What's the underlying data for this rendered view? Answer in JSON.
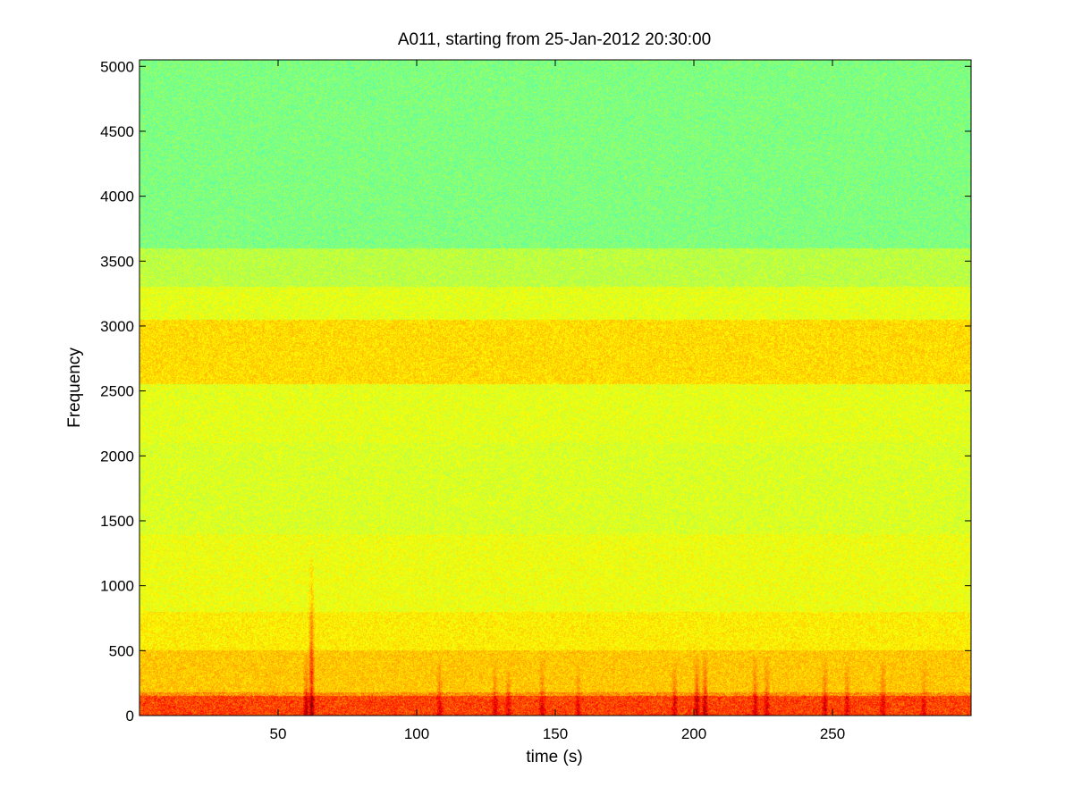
{
  "chart_data": {
    "type": "heatmap",
    "title": "A011, starting from 25-Jan-2012 20:30:00",
    "xlabel": "time (s)",
    "ylabel": "Frequency",
    "xlim": [
      0,
      300
    ],
    "ylim": [
      0,
      5050
    ],
    "x_ticks": [
      50,
      100,
      150,
      200,
      250
    ],
    "y_ticks": [
      0,
      500,
      1000,
      1500,
      2000,
      2500,
      3000,
      3500,
      4000,
      4500,
      5000
    ],
    "grid": false,
    "colormap": "jet",
    "color_scale_hint": "relative intensity 0-1 (no colorbar shown)",
    "bands": [
      {
        "freq_from": 3600,
        "freq_to": 5050,
        "intensity": 0.5
      },
      {
        "freq_from": 3300,
        "freq_to": 3600,
        "intensity": 0.56
      },
      {
        "freq_from": 3050,
        "freq_to": 3300,
        "intensity": 0.6
      },
      {
        "freq_from": 2550,
        "freq_to": 3050,
        "intensity": 0.66
      },
      {
        "freq_from": 2100,
        "freq_to": 2550,
        "intensity": 0.6
      },
      {
        "freq_from": 1400,
        "freq_to": 2100,
        "intensity": 0.59
      },
      {
        "freq_from": 800,
        "freq_to": 1400,
        "intensity": 0.61
      },
      {
        "freq_from": 500,
        "freq_to": 800,
        "intensity": 0.64
      },
      {
        "freq_from": 150,
        "freq_to": 500,
        "intensity": 0.68
      },
      {
        "freq_from": 0,
        "freq_to": 150,
        "intensity": 0.76
      }
    ],
    "transients": [
      {
        "time": 62,
        "freq_top": 1200,
        "intensity": 0.9
      },
      {
        "time": 60,
        "freq_top": 480,
        "intensity": 0.85
      },
      {
        "time": 108,
        "freq_top": 420,
        "intensity": 0.8
      },
      {
        "time": 128,
        "freq_top": 430,
        "intensity": 0.8
      },
      {
        "time": 133,
        "freq_top": 400,
        "intensity": 0.8
      },
      {
        "time": 145,
        "freq_top": 450,
        "intensity": 0.8
      },
      {
        "time": 158,
        "freq_top": 380,
        "intensity": 0.78
      },
      {
        "time": 193,
        "freq_top": 420,
        "intensity": 0.82
      },
      {
        "time": 201,
        "freq_top": 470,
        "intensity": 0.85
      },
      {
        "time": 204,
        "freq_top": 500,
        "intensity": 0.86
      },
      {
        "time": 222,
        "freq_top": 450,
        "intensity": 0.82
      },
      {
        "time": 226,
        "freq_top": 430,
        "intensity": 0.82
      },
      {
        "time": 247,
        "freq_top": 450,
        "intensity": 0.83
      },
      {
        "time": 255,
        "freq_top": 420,
        "intensity": 0.8
      },
      {
        "time": 268,
        "freq_top": 430,
        "intensity": 0.8
      },
      {
        "time": 283,
        "freq_top": 380,
        "intensity": 0.78
      }
    ]
  }
}
